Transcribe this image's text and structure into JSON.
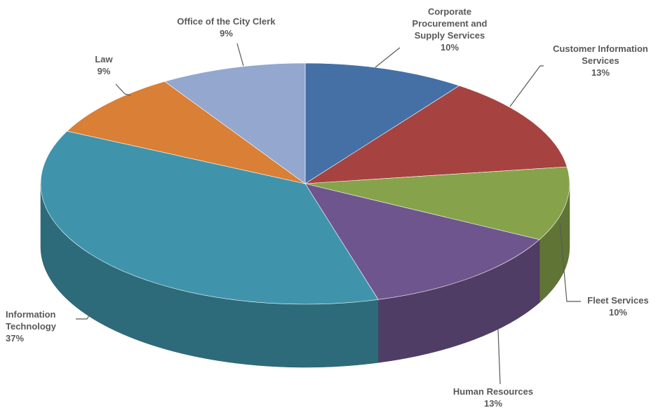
{
  "chart_data": {
    "type": "pie",
    "categories": [
      "Corporate Procurement and Supply Services",
      "Customer Information Services",
      "Fleet Services",
      "Human Resources",
      "Information Technology",
      "Law",
      "Office of the City Clerk"
    ],
    "values": [
      10,
      13,
      10,
      13,
      37,
      9,
      9
    ],
    "value_labels": [
      "10%",
      "13%",
      "10%",
      "13%",
      "37%",
      "9%",
      "9%"
    ],
    "colors": [
      "#4470a5",
      "#a64340",
      "#86a24a",
      "#6f558e",
      "#3f94ab",
      "#d97f36",
      "#93a7cf"
    ]
  }
}
